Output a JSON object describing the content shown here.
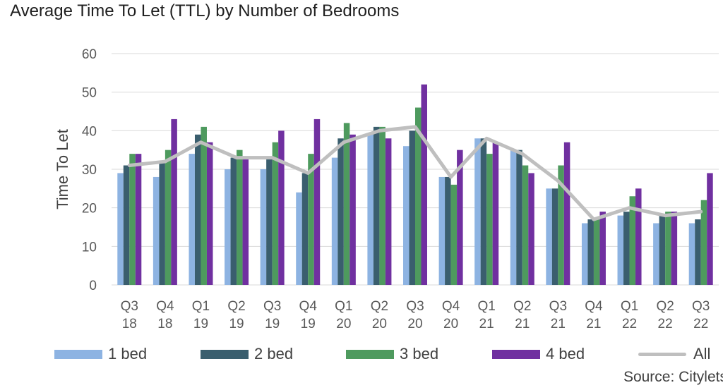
{
  "colors": {
    "1 bed": "#8db3e2",
    "2 bed": "#3a5e6e",
    "3 bed": "#4e9a5e",
    "4 bed": "#7030a0",
    "All": "#bfbfbf",
    "gridline": "#d9d9d9"
  },
  "chart_data": {
    "type": "bar",
    "title": "Average Time To Let (TTL) by Number of Bedrooms",
    "xlabel": "",
    "ylabel": "Time To Let",
    "ylim": [
      0,
      60
    ],
    "yticks": [
      0,
      10,
      20,
      30,
      40,
      50,
      60
    ],
    "grid": true,
    "legend_position": "bottom",
    "categories": [
      [
        "Q3",
        "18"
      ],
      [
        "Q4",
        "18"
      ],
      [
        "Q1",
        "19"
      ],
      [
        "Q2",
        "19"
      ],
      [
        "Q3",
        "19"
      ],
      [
        "Q4",
        "19"
      ],
      [
        "Q1",
        "20"
      ],
      [
        "Q2",
        "20"
      ],
      [
        "Q3",
        "20"
      ],
      [
        "Q4",
        "20"
      ],
      [
        "Q1",
        "21"
      ],
      [
        "Q2",
        "21"
      ],
      [
        "Q3",
        "21"
      ],
      [
        "Q4",
        "21"
      ],
      [
        "Q1",
        "22"
      ],
      [
        "Q2",
        "22"
      ],
      [
        "Q3",
        "22"
      ]
    ],
    "series": [
      {
        "name": "1 bed",
        "values": [
          29,
          28,
          34,
          30,
          30,
          24,
          33,
          39,
          36,
          28,
          38,
          35,
          25,
          16,
          18,
          16,
          16
        ]
      },
      {
        "name": "2 bed",
        "values": [
          31,
          32,
          39,
          33,
          33,
          29,
          38,
          41,
          40,
          28,
          38,
          35,
          25,
          17,
          19,
          18,
          17
        ]
      },
      {
        "name": "3 bed",
        "values": [
          34,
          35,
          41,
          35,
          37,
          34,
          42,
          41,
          46,
          26,
          34,
          31,
          31,
          17,
          23,
          19,
          22
        ]
      },
      {
        "name": "4 bed",
        "values": [
          34,
          43,
          37,
          33,
          40,
          43,
          39,
          38,
          52,
          35,
          37,
          29,
          37,
          19,
          25,
          19,
          29
        ]
      }
    ],
    "line_series": [
      {
        "name": "All",
        "type": "line",
        "values": [
          31,
          32,
          37,
          33,
          33,
          29,
          37,
          40,
          41,
          28,
          38,
          34,
          27,
          17,
          20,
          18,
          19
        ]
      }
    ]
  },
  "source_text": "Source: Citylets"
}
